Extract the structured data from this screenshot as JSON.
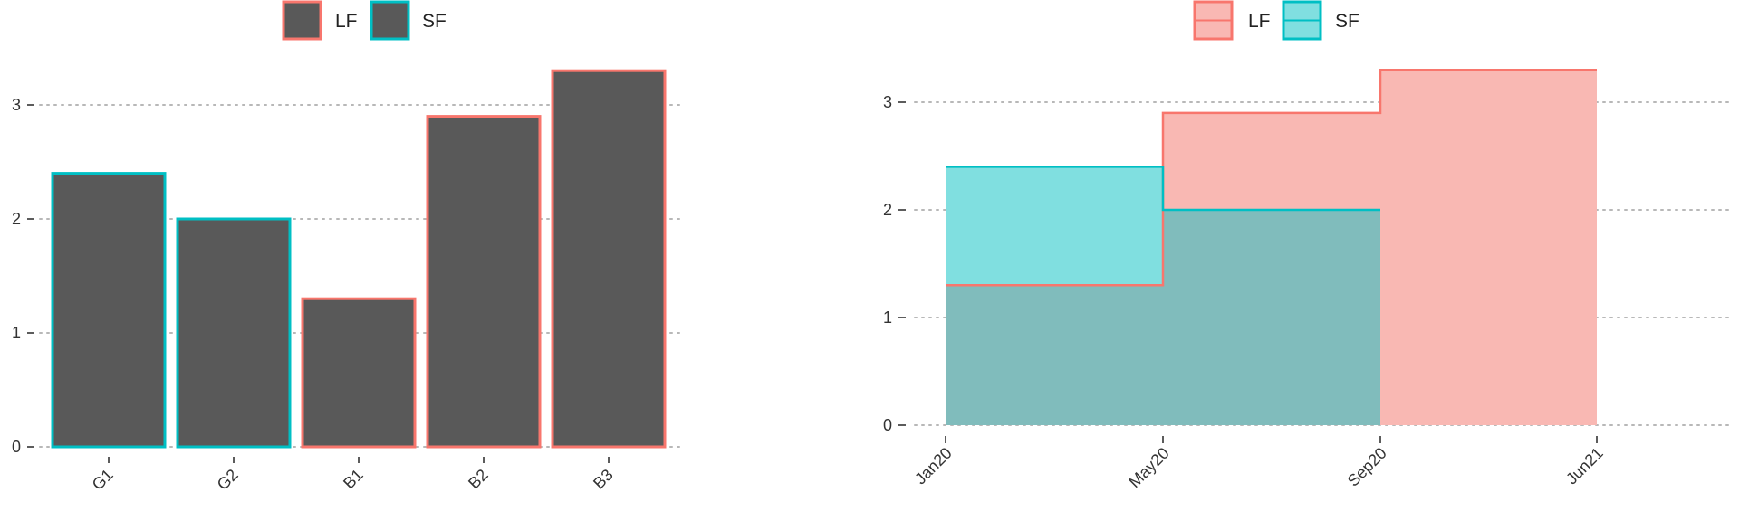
{
  "chart_data": [
    {
      "type": "bar",
      "categories": [
        "G1",
        "G2",
        "B1",
        "B2",
        "B3"
      ],
      "values": [
        2.4,
        2.0,
        1.3,
        2.9,
        3.3
      ],
      "groups": [
        "SF",
        "SF",
        "LF",
        "LF",
        "LF"
      ],
      "ylim": [
        0,
        3.3
      ],
      "yticks": [
        "0",
        "1",
        "2",
        "3"
      ],
      "grid": true,
      "legend": {
        "placement": "top-center",
        "entries": [
          "LF",
          "SF"
        ]
      },
      "colors": {
        "LF": "#f8766d",
        "SF": "#00bfc4",
        "fill": "#595959"
      }
    },
    {
      "type": "area",
      "xticks": [
        "Jan20",
        "May20",
        "Sep20",
        "Jun21"
      ],
      "series": [
        {
          "name": "LF",
          "x": [
            "Jan20",
            "May20",
            "Sep20",
            "Jun21"
          ],
          "values": [
            1.3,
            2.9,
            3.3,
            3.3
          ]
        },
        {
          "name": "SF",
          "x": [
            "Jan20",
            "May20",
            "Sep20"
          ],
          "values": [
            2.4,
            2.0,
            2.0
          ]
        }
      ],
      "ylim": [
        0,
        3.3
      ],
      "yticks": [
        "0",
        "1",
        "2",
        "3"
      ],
      "grid": true,
      "legend": {
        "placement": "top-center",
        "entries": [
          "LF",
          "SF"
        ]
      },
      "colors": {
        "LF": "#f8766d",
        "SF": "#00bfc4",
        "LF_fill": "#f9b8b3",
        "SF_fill": "#80dfe0",
        "overlap_fill": "#80bcbc"
      }
    }
  ]
}
